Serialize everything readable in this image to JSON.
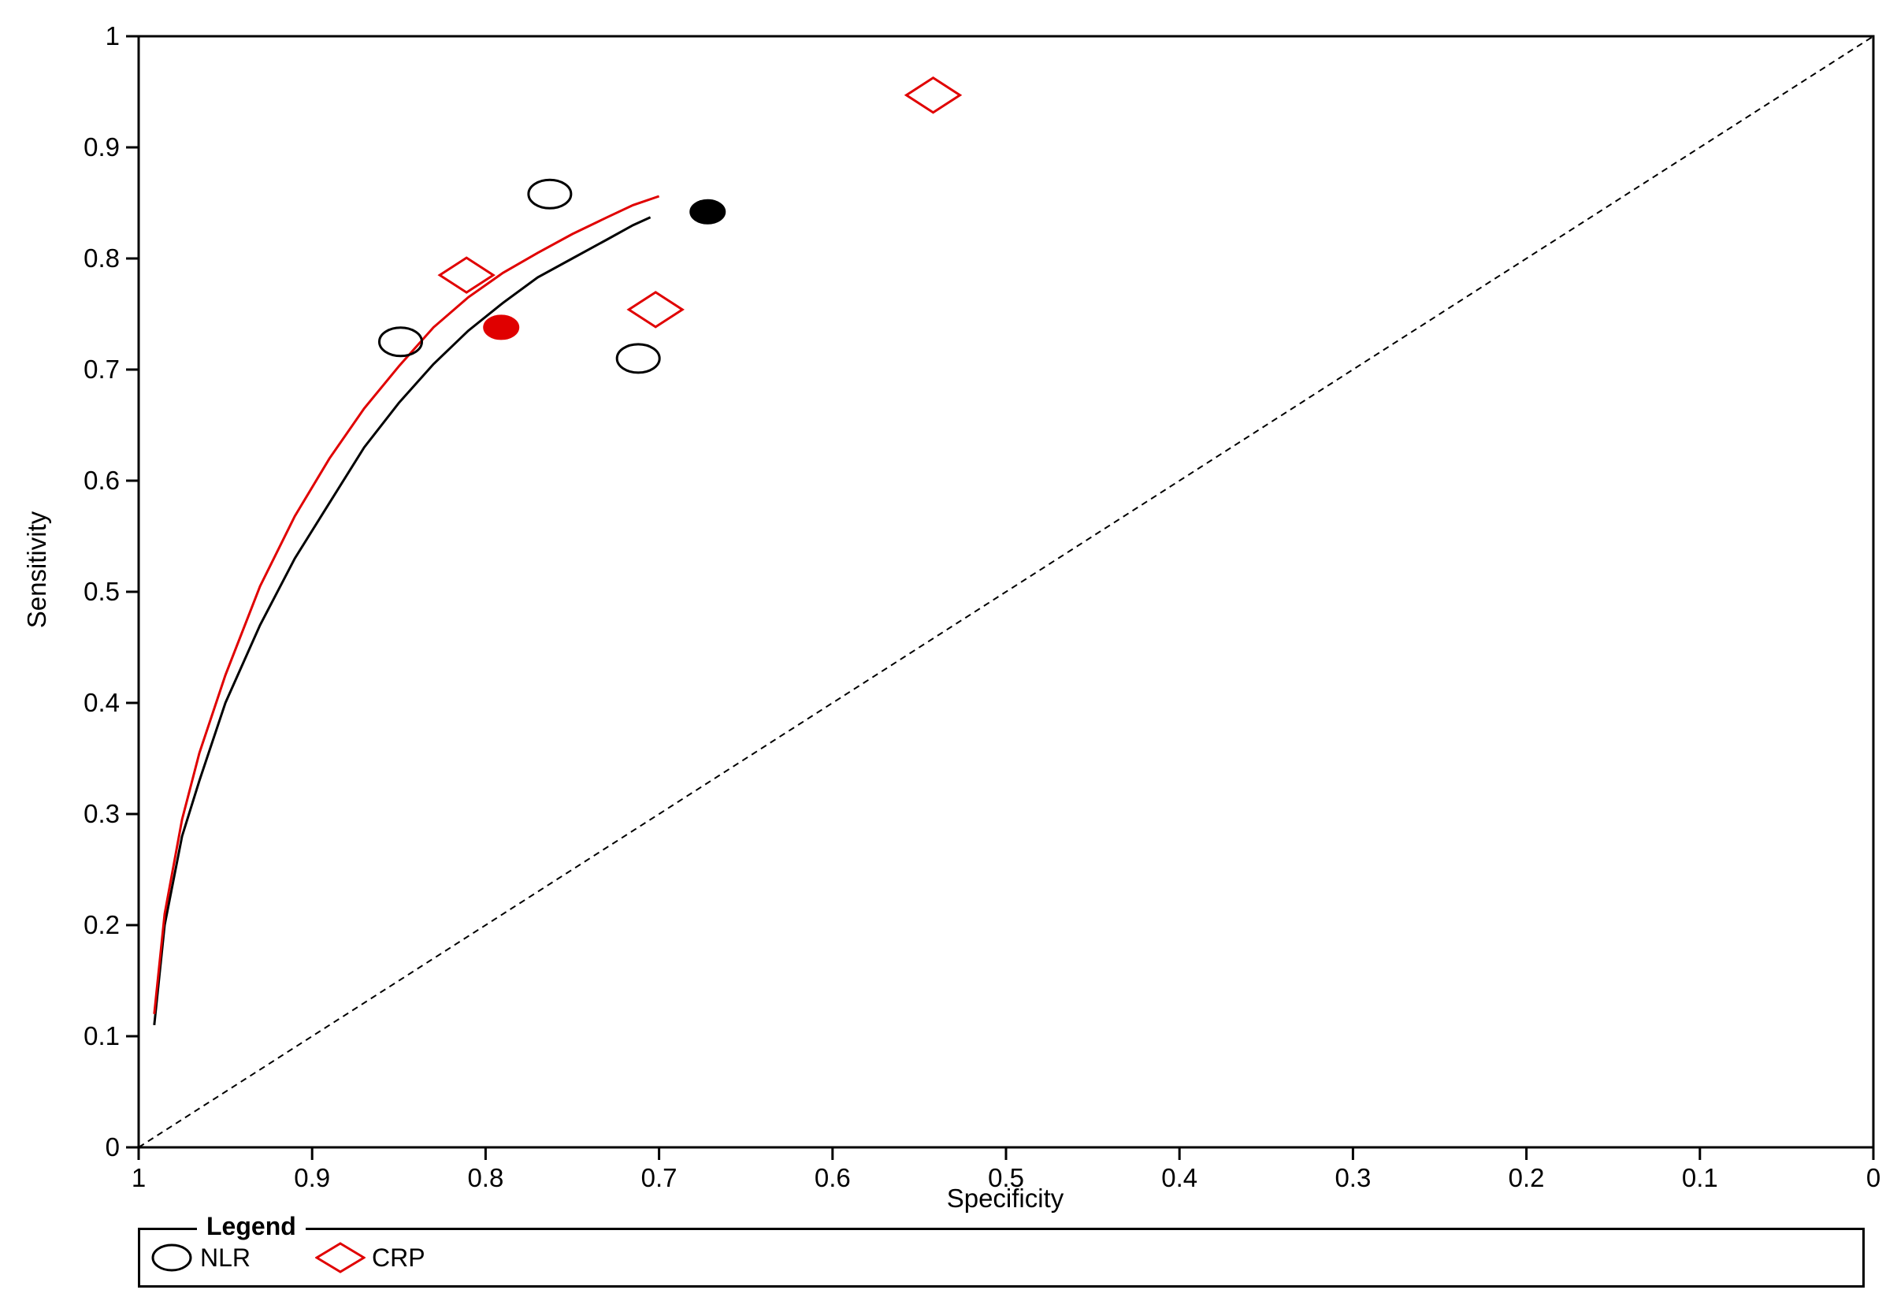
{
  "chart_data": {
    "type": "scatter",
    "xlabel": "Specificity",
    "ylabel": "Sensitivity",
    "xlim": [
      1,
      0
    ],
    "ylim": [
      0,
      1
    ],
    "x_ticks": [
      "1",
      "0.9",
      "0.8",
      "0.7",
      "0.6",
      "0.5",
      "0.4",
      "0.3",
      "0.2",
      "0.1",
      "0"
    ],
    "y_ticks": [
      "0",
      "0.1",
      "0.2",
      "0.3",
      "0.4",
      "0.5",
      "0.6",
      "0.7",
      "0.8",
      "0.9",
      "1"
    ],
    "reference_line": {
      "from": [
        1,
        0
      ],
      "to": [
        0,
        1
      ],
      "style": "dashed"
    },
    "series": [
      {
        "name": "NLR",
        "marker": "circle",
        "color": "#000000",
        "studies": [
          {
            "x": 0.763,
            "y": 0.858
          },
          {
            "x": 0.849,
            "y": 0.725
          },
          {
            "x": 0.712,
            "y": 0.71
          }
        ],
        "summary_point": {
          "x": 0.672,
          "y": 0.842
        },
        "curve": [
          [
            0.991,
            0.11
          ],
          [
            0.985,
            0.2
          ],
          [
            0.975,
            0.28
          ],
          [
            0.965,
            0.33
          ],
          [
            0.95,
            0.4
          ],
          [
            0.93,
            0.47
          ],
          [
            0.91,
            0.53
          ],
          [
            0.89,
            0.58
          ],
          [
            0.87,
            0.63
          ],
          [
            0.85,
            0.67
          ],
          [
            0.83,
            0.705
          ],
          [
            0.81,
            0.735
          ],
          [
            0.79,
            0.76
          ],
          [
            0.77,
            0.783
          ],
          [
            0.75,
            0.8
          ],
          [
            0.73,
            0.817
          ],
          [
            0.715,
            0.83
          ],
          [
            0.705,
            0.837
          ]
        ]
      },
      {
        "name": "CRP",
        "marker": "diamond",
        "color": "#e00000",
        "studies": [
          {
            "x": 0.542,
            "y": 0.947
          },
          {
            "x": 0.811,
            "y": 0.785
          },
          {
            "x": 0.702,
            "y": 0.754
          }
        ],
        "summary_point": {
          "x": 0.791,
          "y": 0.738
        },
        "curve": [
          [
            0.991,
            0.12
          ],
          [
            0.985,
            0.21
          ],
          [
            0.975,
            0.295
          ],
          [
            0.965,
            0.355
          ],
          [
            0.95,
            0.425
          ],
          [
            0.93,
            0.505
          ],
          [
            0.91,
            0.568
          ],
          [
            0.89,
            0.62
          ],
          [
            0.87,
            0.665
          ],
          [
            0.85,
            0.703
          ],
          [
            0.83,
            0.738
          ],
          [
            0.81,
            0.765
          ],
          [
            0.79,
            0.787
          ],
          [
            0.77,
            0.805
          ],
          [
            0.75,
            0.822
          ],
          [
            0.73,
            0.837
          ],
          [
            0.715,
            0.848
          ],
          [
            0.7,
            0.856
          ]
        ]
      }
    ],
    "legend": {
      "title": "Legend",
      "placement": "bottom",
      "entries": [
        "NLR",
        "CRP"
      ]
    },
    "grid": false
  }
}
